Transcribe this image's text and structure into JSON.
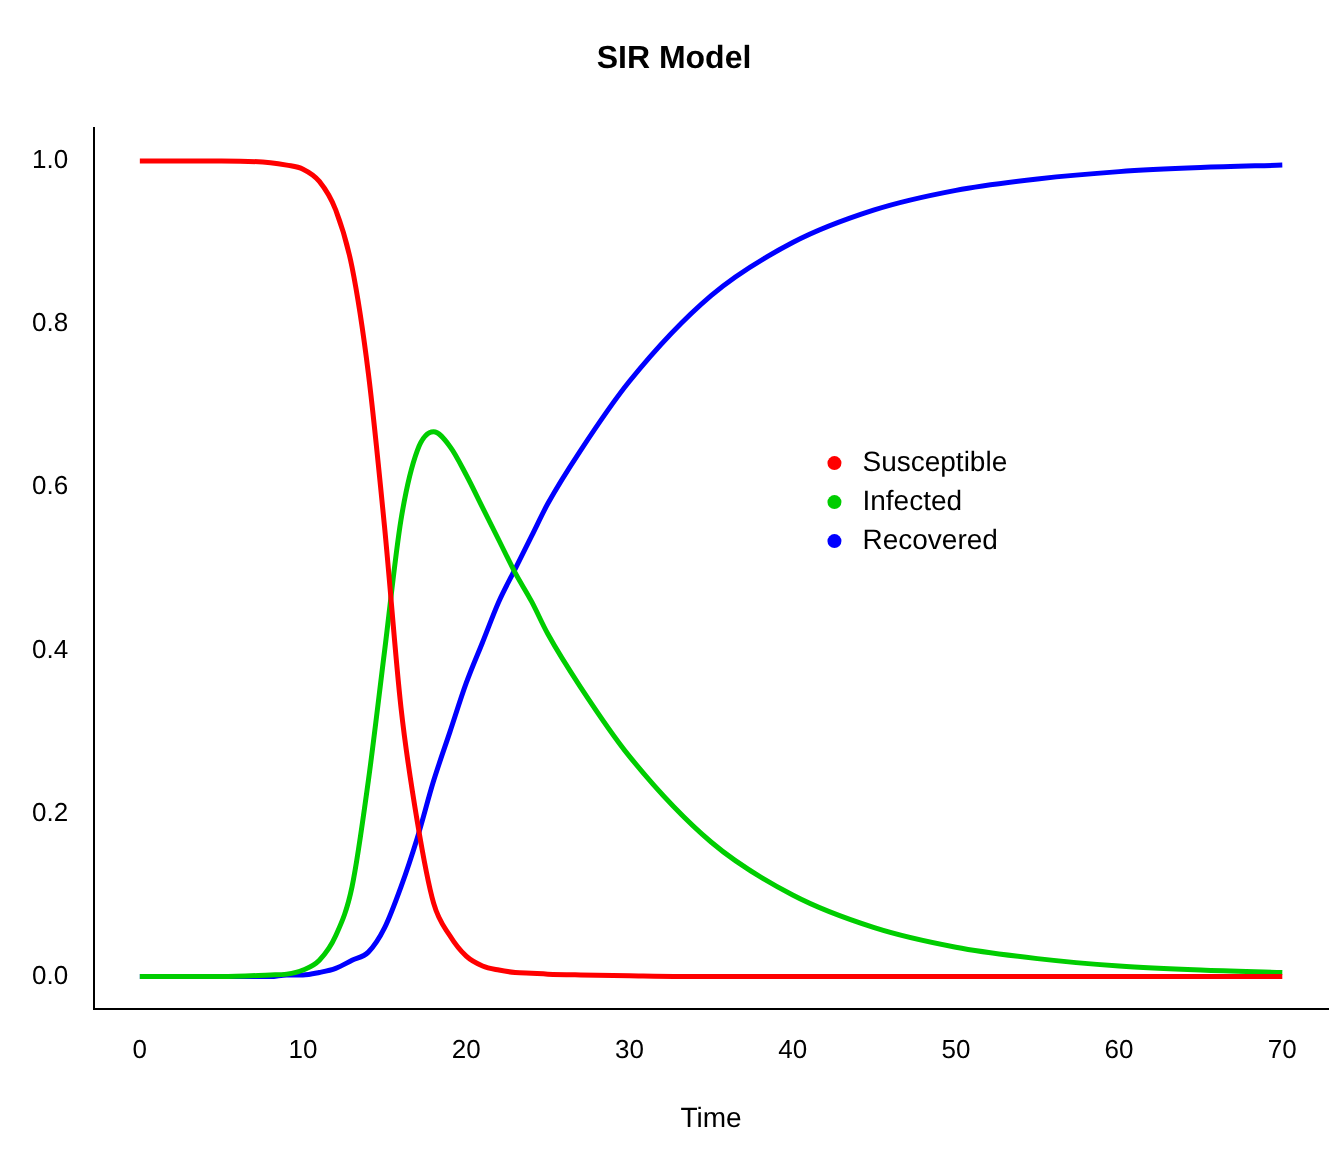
{
  "chart_data": {
    "type": "line",
    "title": "SIR Model",
    "xlabel": "Time",
    "x": [
      0,
      5,
      8,
      9,
      10,
      11,
      12,
      13,
      14,
      15,
      16,
      17,
      18,
      19,
      20,
      21,
      22,
      23,
      24,
      25,
      27,
      30,
      35,
      40,
      45,
      50,
      55,
      60,
      65,
      70
    ],
    "series": [
      {
        "name": "Susceptible",
        "color": "#ff0000",
        "values": [
          1,
          1,
          0.998,
          0.995,
          0.99,
          0.975,
          0.94,
          0.87,
          0.74,
          0.55,
          0.33,
          0.19,
          0.09,
          0.05,
          0.025,
          0.013,
          0.008,
          0.005,
          0.004,
          0.003,
          0.002,
          0.001,
          0,
          0,
          0,
          0,
          0,
          0,
          0,
          0
        ]
      },
      {
        "name": "Infected",
        "color": "#00cd00",
        "values": [
          0,
          0,
          0.002,
          0.003,
          0.008,
          0.02,
          0.05,
          0.11,
          0.24,
          0.4,
          0.56,
          0.645,
          0.668,
          0.65,
          0.615,
          0.575,
          0.535,
          0.495,
          0.46,
          0.42,
          0.355,
          0.27,
          0.165,
          0.1,
          0.06,
          0.036,
          0.022,
          0.013,
          0.008,
          0.005
        ]
      },
      {
        "name": "Recovered",
        "color": "#0000ff",
        "values": [
          0,
          0,
          0,
          0.002,
          0.002,
          0.005,
          0.01,
          0.02,
          0.03,
          0.06,
          0.11,
          0.17,
          0.24,
          0.3,
          0.36,
          0.41,
          0.46,
          0.5,
          0.54,
          0.58,
          0.645,
          0.73,
          0.835,
          0.9,
          0.94,
          0.964,
          0.978,
          0.987,
          0.992,
          0.995
        ]
      }
    ],
    "xlim": [
      -2.8,
      72.8
    ],
    "xticks": [
      0,
      10,
      20,
      30,
      40,
      50,
      60,
      70
    ],
    "ylim": [
      -0.04,
      1.04
    ],
    "yticks": [
      {
        "value": 0,
        "label": "0.0"
      },
      {
        "value": 0.2,
        "label": "0.2"
      },
      {
        "value": 0.4,
        "label": "0.4"
      },
      {
        "value": 0.6,
        "label": "0.6"
      },
      {
        "value": 0.8,
        "label": "0.8"
      },
      {
        "value": 1,
        "label": "1.0"
      }
    ],
    "grid": false,
    "legend": "right",
    "marker": "none",
    "line_style": "solid"
  }
}
